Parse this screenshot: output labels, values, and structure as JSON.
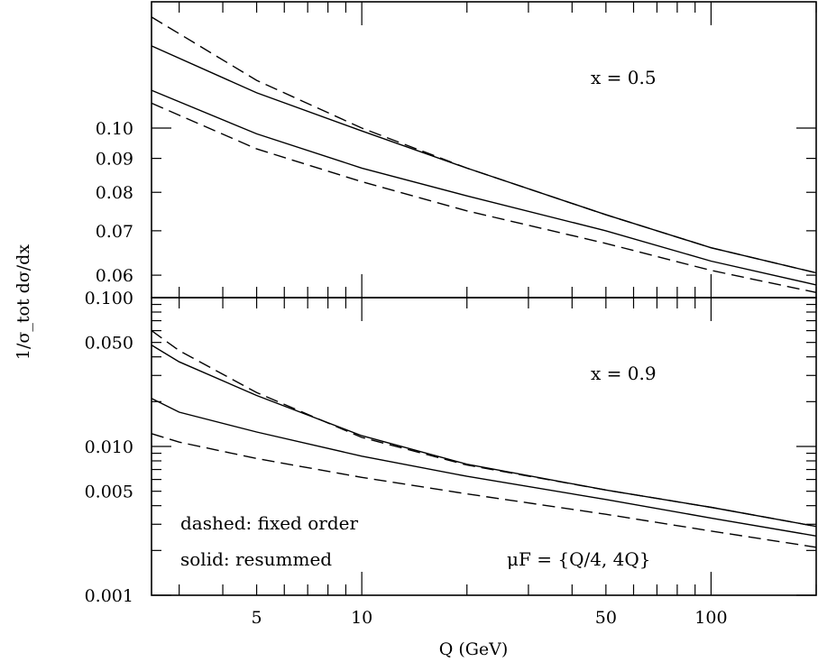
{
  "chart_data": {
    "type": "line",
    "xlabel": "Q (GeV)",
    "ylabel": "1/σ_tot dσ/dx",
    "xscale": "log",
    "yscale": "log",
    "xlim": [
      2.5,
      200
    ],
    "x_tick_labels": [
      {
        "value": 5,
        "label": "5"
      },
      {
        "value": 10,
        "label": "10"
      },
      {
        "value": 50,
        "label": "50"
      },
      {
        "value": 100,
        "label": "100"
      }
    ],
    "legend_text": {
      "dashed": "dashed: fixed order",
      "solid": "solid: resummed",
      "scale": "μF = {Q/4, 4Q}"
    },
    "panels": [
      {
        "id": "top",
        "annotation": "x = 0.5",
        "ylim": [
          0.0555,
          0.155
        ],
        "y_tick_labels": [
          {
            "value": 0.06,
            "label": "0.06"
          },
          {
            "value": 0.07,
            "label": "0.07"
          },
          {
            "value": 0.08,
            "label": "0.08"
          },
          {
            "value": 0.09,
            "label": "0.09"
          },
          {
            "value": 0.1,
            "label": "0.10"
          }
        ],
        "series": [
          {
            "style": "dashed",
            "x": [
              2.5,
              5,
              10,
              20,
              50,
              100,
              200
            ],
            "y": [
              0.147,
              0.118,
              0.1,
              0.087,
              0.074,
              0.066,
              0.0605
            ]
          },
          {
            "style": "solid",
            "x": [
              2.5,
              5,
              10,
              20,
              50,
              100,
              200
            ],
            "y": [
              0.133,
              0.113,
              0.099,
              0.087,
              0.074,
              0.066,
              0.0605
            ]
          },
          {
            "style": "solid",
            "x": [
              2.5,
              5,
              10,
              20,
              50,
              100,
              200
            ],
            "y": [
              0.114,
              0.098,
              0.087,
              0.079,
              0.07,
              0.063,
              0.058
            ]
          },
          {
            "style": "dashed",
            "x": [
              2.5,
              5,
              10,
              20,
              50,
              100,
              200
            ],
            "y": [
              0.109,
              0.093,
              0.083,
              0.075,
              0.067,
              0.061,
              0.0565
            ]
          }
        ]
      },
      {
        "id": "bottom",
        "annotation": "x = 0.9",
        "ylim": [
          0.001,
          0.1
        ],
        "y_tick_labels": [
          {
            "value": 0.001,
            "label": "0.001"
          },
          {
            "value": 0.005,
            "label": "0.005"
          },
          {
            "value": 0.01,
            "label": "0.010"
          },
          {
            "value": 0.05,
            "label": "0.050"
          },
          {
            "value": 0.1,
            "label": "0.100"
          }
        ],
        "series": [
          {
            "style": "dashed",
            "x": [
              2.5,
              3,
              5,
              10,
              20,
              50,
              100,
              200
            ],
            "y": [
              0.06,
              0.044,
              0.023,
              0.0115,
              0.0075,
              0.0051,
              0.0039,
              0.0029
            ]
          },
          {
            "style": "solid",
            "x": [
              2.5,
              3,
              5,
              10,
              20,
              50,
              100,
              200
            ],
            "y": [
              0.048,
              0.037,
              0.022,
              0.0118,
              0.0076,
              0.0051,
              0.0039,
              0.0029
            ]
          },
          {
            "style": "solid",
            "x": [
              2.5,
              3,
              5,
              10,
              20,
              50,
              100,
              200
            ],
            "y": [
              0.021,
              0.017,
              0.0125,
              0.0086,
              0.0063,
              0.0044,
              0.0033,
              0.0025
            ]
          },
          {
            "style": "dashed",
            "x": [
              2.5,
              3,
              5,
              10,
              20,
              50,
              100,
              200
            ],
            "y": [
              0.0122,
              0.0107,
              0.0083,
              0.0062,
              0.0048,
              0.0035,
              0.0027,
              0.0021
            ]
          }
        ]
      }
    ]
  }
}
